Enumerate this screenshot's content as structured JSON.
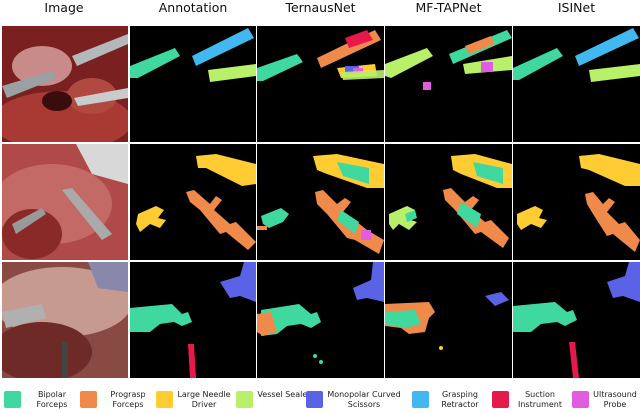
{
  "headers": [
    "Image",
    "Annotation",
    "TernausNet",
    "MF-TAPNet",
    "ISINet"
  ],
  "legend": [
    {
      "label": "Bipolar Forceps",
      "color": "#3fd9a0"
    },
    {
      "label": "Prograsp Forceps",
      "color": "#f08a4b"
    },
    {
      "label": "Large Needle Driver",
      "color": "#ffcc33"
    },
    {
      "label": "Vessel Sealer",
      "color": "#b9f06a"
    },
    {
      "label": "Monopolar Curved Scissors",
      "color": "#5a63e6"
    },
    {
      "label": "Grasping Retractor",
      "color": "#41b8f0"
    },
    {
      "label": "Suction Instrument",
      "color": "#e6194b"
    },
    {
      "label": "Ultrasound Probe",
      "color": "#e05ce0"
    }
  ]
}
